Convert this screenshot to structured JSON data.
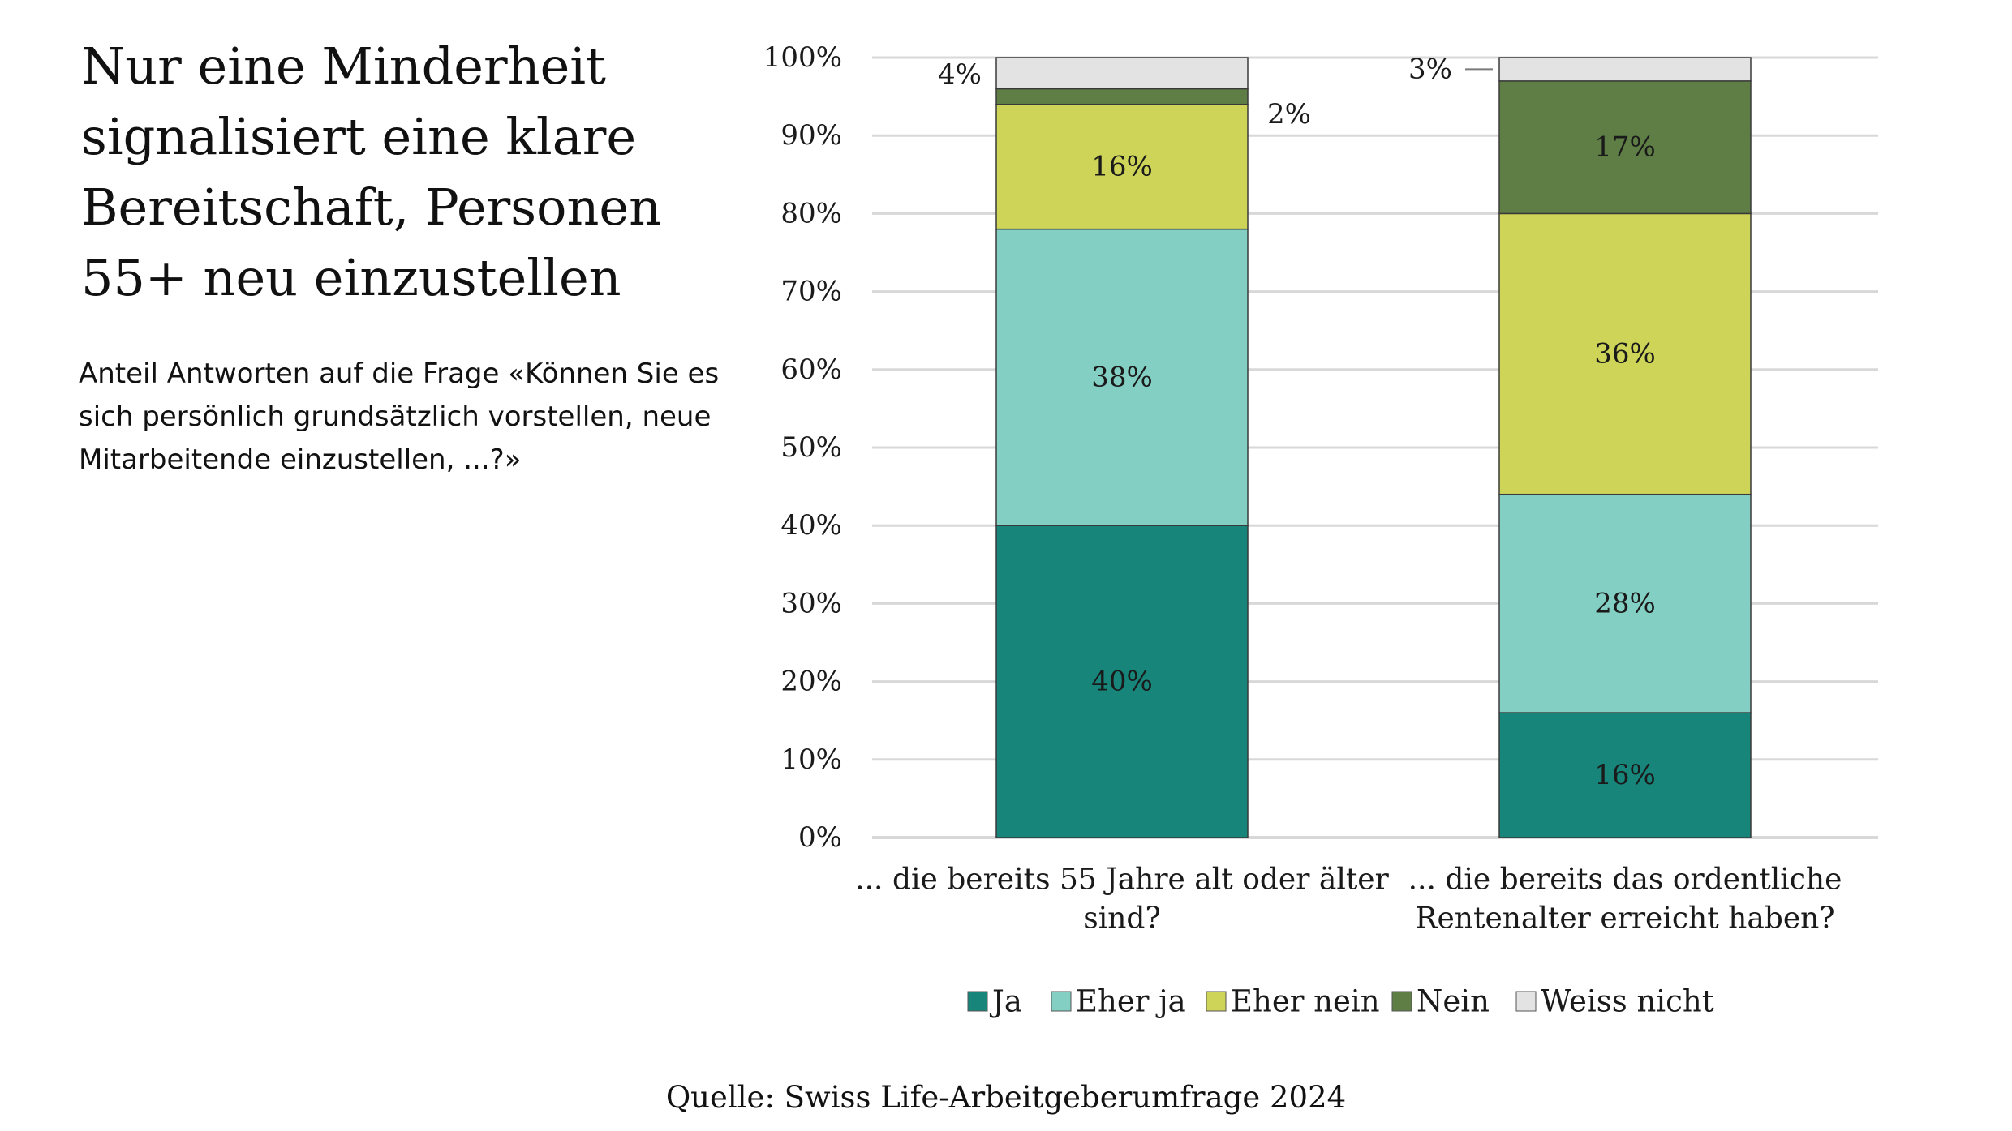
{
  "headline": "Nur eine Minderheit signalisiert eine klare Bereitschaft, Personen 55+ neu einzustellen",
  "subtitle": "Anteil Antworten auf die Frage «Können Sie es sich persönlich grundsätzlich vorstellen, neue Mitarbeitende einzustellen, ...?»",
  "source": "Quelle: Swiss Life-Arbeitgeberumfrage 2024",
  "colors": {
    "ja": "#17857a",
    "eher_ja": "#84cfc3",
    "eher_nein": "#cdd458",
    "nein": "#5e7e45",
    "weiss_nicht": "#e3e3e3",
    "gridline": "#d8d8d8",
    "text": "#1a1a1a"
  },
  "chart_data": {
    "type": "bar",
    "stacked": true,
    "categories": [
      [
        "... die bereits 55 Jahre alt oder älter",
        "sind?"
      ],
      [
        "... die bereits das ordentliche",
        "Rentenalter erreicht haben?"
      ]
    ],
    "series": [
      {
        "name": "Ja",
        "color_key": "ja",
        "values": [
          40,
          16
        ],
        "labels": [
          "40%",
          "16%"
        ]
      },
      {
        "name": "Eher ja",
        "color_key": "eher_ja",
        "values": [
          38,
          28
        ],
        "labels": [
          "38%",
          "28%"
        ]
      },
      {
        "name": "Eher nein",
        "color_key": "eher_nein",
        "values": [
          16,
          36
        ],
        "labels": [
          "16%",
          "36%"
        ]
      },
      {
        "name": "Nein",
        "color_key": "nein",
        "values": [
          2,
          17
        ],
        "labels": [
          "2%",
          "17%"
        ]
      },
      {
        "name": "Weiss nicht",
        "color_key": "weiss_nicht",
        "values": [
          4,
          3
        ],
        "labels": [
          "4%",
          "3%"
        ]
      }
    ],
    "yticks": [
      "0%",
      "10%",
      "20%",
      "30%",
      "40%",
      "50%",
      "60%",
      "70%",
      "80%",
      "90%",
      "100%"
    ],
    "ylim": [
      0,
      100
    ],
    "grid": true,
    "legend_position": "bottom"
  }
}
